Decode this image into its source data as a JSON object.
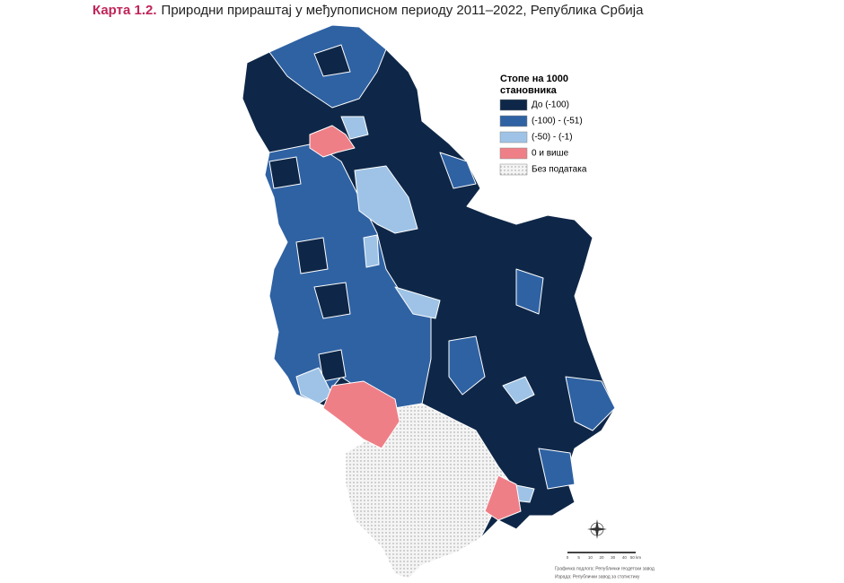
{
  "header": {
    "label": "Карта 1.2.",
    "title": "Природни прираштај у међупописном периоду 2011–2022, Република Србија"
  },
  "legend": {
    "title": [
      "Стопе на 1000",
      "становника"
    ],
    "items": [
      {
        "label": "До (-100)",
        "color": "#0e2748"
      },
      {
        "label": "(-100) - (-51)",
        "color": "#2f62a3"
      },
      {
        "label": "(-50) - (-1)",
        "color": "#9ec3e6"
      },
      {
        "label": "0 и више",
        "color": "#ef7f87"
      },
      {
        "label": "Без података",
        "color": "#f0f0f0"
      }
    ]
  },
  "scale": {
    "labels": [
      "0",
      "5",
      "10",
      "20",
      "30",
      "40",
      "50 km"
    ]
  },
  "source": [
    "Графичка подлога: Републички геодетски завод",
    "Израда: Републички завод за статистику"
  ]
}
